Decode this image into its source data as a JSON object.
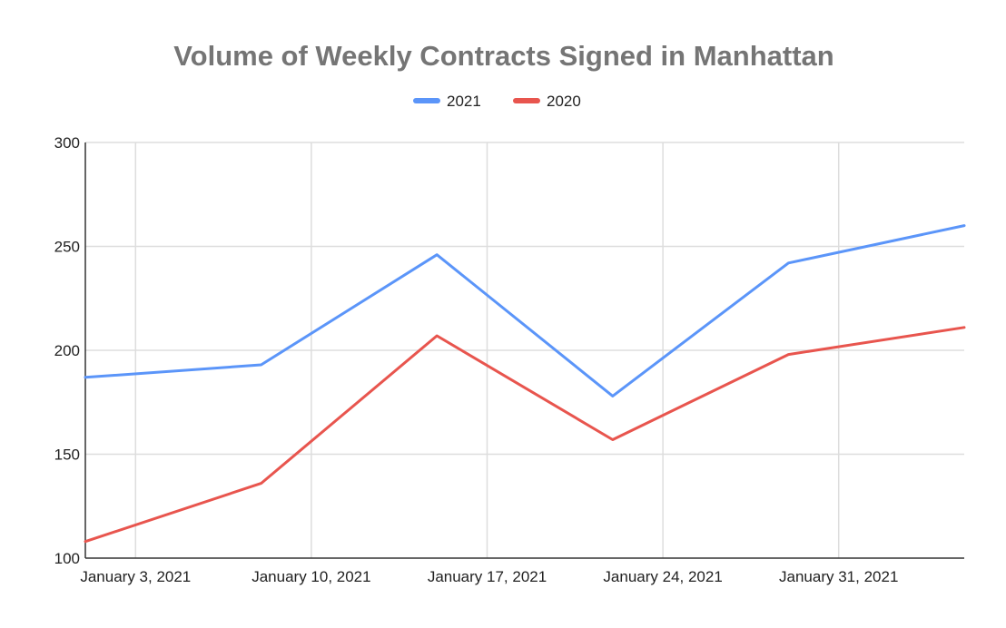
{
  "chart_data": {
    "type": "line",
    "title": "Volume of Weekly Contracts Signed in Manhattan",
    "xlabel": "",
    "ylabel": "",
    "x": [
      "2021-01-01",
      "2021-01-08",
      "2021-01-15",
      "2021-01-22",
      "2021-01-29",
      "2021-02-05"
    ],
    "x_ticks": [
      "2021-01-03",
      "2021-01-10",
      "2021-01-17",
      "2021-01-24",
      "2021-01-31"
    ],
    "x_tick_labels": [
      "January 3, 2021",
      "January 10, 2021",
      "January 17, 2021",
      "January 24, 2021",
      "January 31, 2021"
    ],
    "ylim": [
      100,
      300
    ],
    "y_ticks": [
      100,
      150,
      200,
      250,
      300
    ],
    "grid": true,
    "legend_position": "top",
    "series": [
      {
        "name": "2021",
        "color": "#5b95f9",
        "values": [
          187,
          193,
          246,
          178,
          242,
          260
        ]
      },
      {
        "name": "2020",
        "color": "#e8554e",
        "values": [
          108,
          136,
          207,
          157,
          198,
          211
        ]
      }
    ]
  }
}
